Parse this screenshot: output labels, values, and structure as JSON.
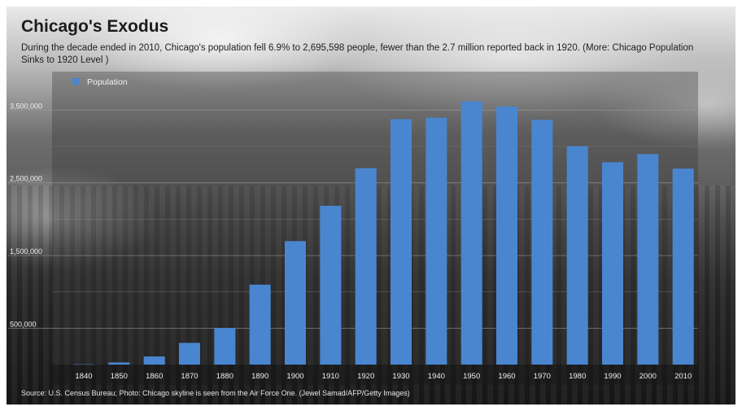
{
  "header": {
    "title": "Chicago's Exodus",
    "subtitle": "During the decade ended in 2010, Chicago's population fell 6.9% to 2,695,598 people, fewer than the 2.7 million reported back in 1920. (More: Chicago Population Sinks to 1920 Level )"
  },
  "footer": {
    "source": "Source: U.S. Census Bureau; Photo: Chicago skyline is seen from the Air Force One. (Jewel Samad/AFP/Getty Images)"
  },
  "colors": {
    "bar": "#4a86d0",
    "tick_text": "#f0f0f0",
    "grid": "#9a9a9a"
  },
  "chart_data": {
    "type": "bar",
    "title": "Chicago's Exodus",
    "xlabel": "",
    "ylabel": "",
    "categories": [
      "1840",
      "1850",
      "1860",
      "1870",
      "1880",
      "1890",
      "1900",
      "1910",
      "1920",
      "1930",
      "1940",
      "1950",
      "1960",
      "1970",
      "1980",
      "1990",
      "2000",
      "2010"
    ],
    "series": [
      {
        "name": "Population",
        "values": [
          4470,
          29963,
          112172,
          298977,
          503185,
          1099850,
          1698575,
          2185283,
          2701705,
          3376438,
          3396808,
          3620962,
          3550404,
          3366957,
          3005072,
          2783726,
          2896016,
          2695598
        ]
      }
    ],
    "yticks": [
      500000,
      1500000,
      2500000,
      3500000
    ],
    "ytick_labels": [
      "500,000",
      "1,500,000",
      "2,500,000",
      "3,500,000"
    ],
    "ylim": [
      0,
      3500000
    ],
    "grid": true,
    "legend": "top-left"
  }
}
